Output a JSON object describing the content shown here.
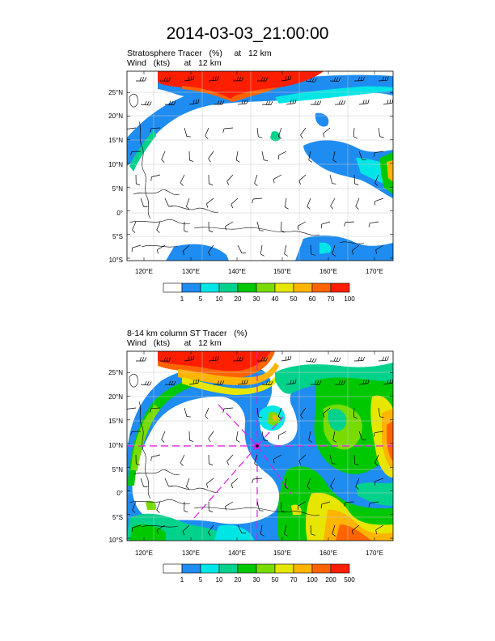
{
  "title": "2014-03-03_21:00:00",
  "panels": [
    {
      "line1": "Stratosphere Tracer   (%)     at   12 km",
      "line2": "Wind   (kts)      at   12 km",
      "lat_labels": [
        "25°N",
        "20°N",
        "15°N",
        "10°N",
        "5°N",
        "0°",
        "5°S",
        "10°S"
      ],
      "lon_labels": [
        "120°E",
        "130°E",
        "140°E",
        "150°E",
        "160°E",
        "170°E"
      ],
      "colorbar_labels": [
        "1",
        "5",
        "10",
        "20",
        "30",
        "40",
        "50",
        "60",
        "70",
        "100"
      ],
      "colorbar_colors": [
        "#ffffff",
        "#1e8cf0",
        "#00e6e6",
        "#00d28c",
        "#00c800",
        "#78dc00",
        "#e6e600",
        "#ffb400",
        "#ff6400",
        "#ff1e00"
      ]
    },
    {
      "line1": "8-14 km column ST Tracer   (%)",
      "line2": "Wind   (kts)      at   12 km",
      "lat_labels": [
        "25°N",
        "20°N",
        "15°N",
        "10°N",
        "5°N",
        "0°",
        "5°S",
        "10°S"
      ],
      "lon_labels": [
        "120°E",
        "130°E",
        "140°E",
        "150°E",
        "160°E",
        "170°E"
      ],
      "colorbar_labels": [
        "1",
        "5",
        "10",
        "20",
        "30",
        "50",
        "70",
        "100",
        "200",
        "500"
      ],
      "colorbar_colors": [
        "#ffffff",
        "#1e8cf0",
        "#00e6e6",
        "#00d28c",
        "#00c800",
        "#78dc00",
        "#e6e600",
        "#ffb400",
        "#ff6400",
        "#ff1e00"
      ]
    }
  ]
}
